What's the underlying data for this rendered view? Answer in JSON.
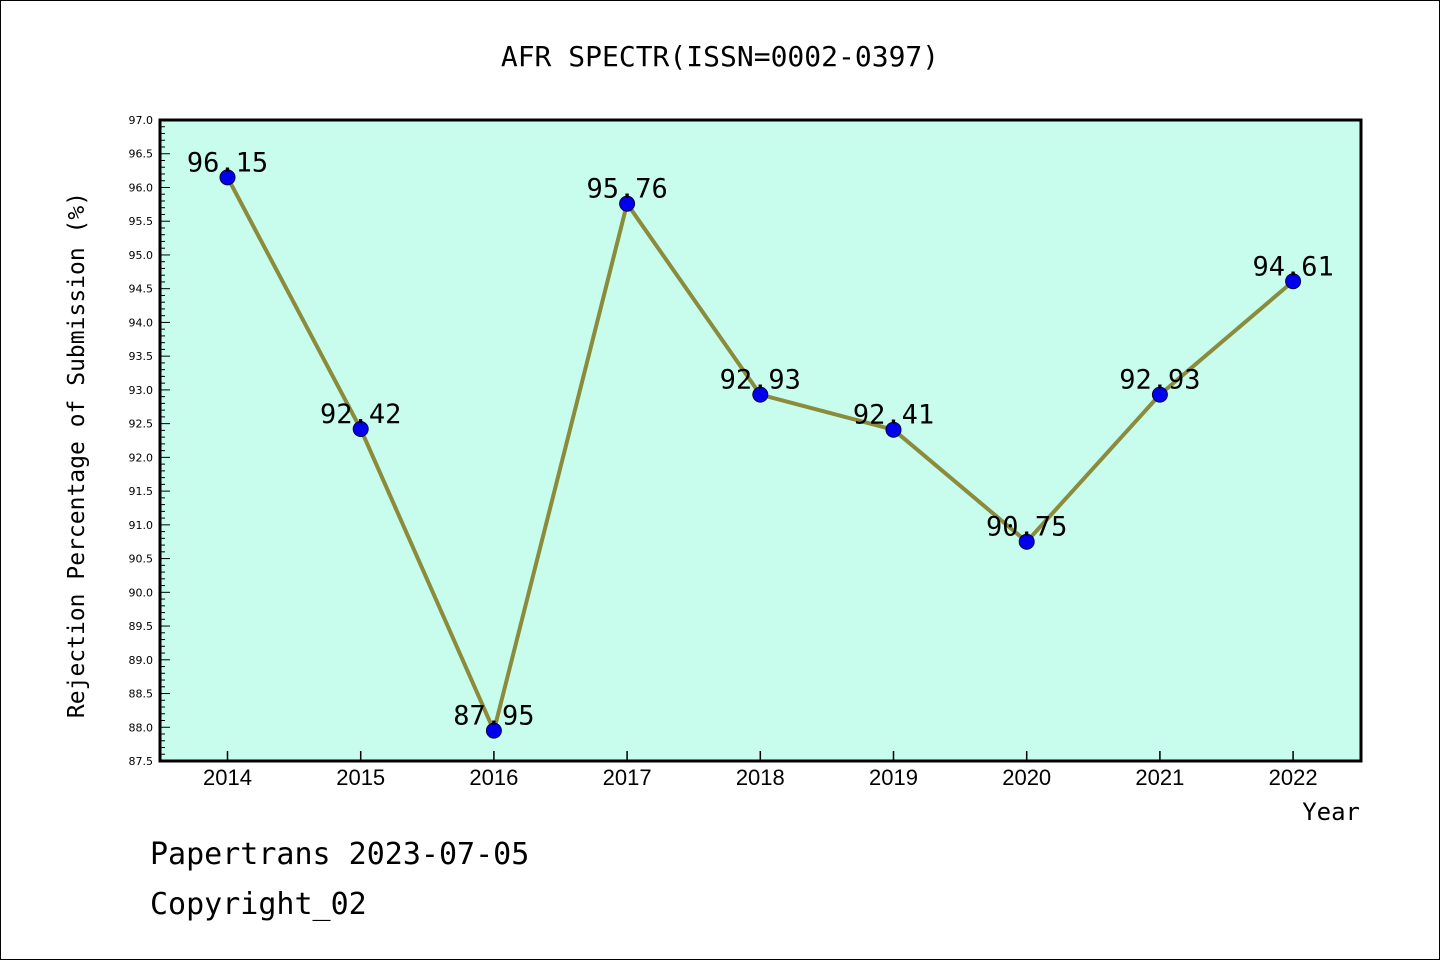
{
  "title": "AFR SPECTR(ISSN=0002-0397)",
  "footer": {
    "line1": "Papertrans 2023-07-05",
    "line2": "Copyright_02"
  },
  "colors": {
    "plot_bg": "#c8fced",
    "line": "#8b8b3c",
    "marker": "#0000ee",
    "frame": "#000000"
  },
  "chart_data": {
    "type": "line",
    "title": "AFR SPECTR(ISSN=0002-0397)",
    "xlabel": "Year",
    "ylabel": "Rejection Percentage of Submission (%)",
    "categories": [
      "2014",
      "2015",
      "2016",
      "2017",
      "2018",
      "2019",
      "2020",
      "2021",
      "2022"
    ],
    "values": [
      96.15,
      92.42,
      87.95,
      95.76,
      92.93,
      92.41,
      90.75,
      92.93,
      94.61
    ],
    "data_labels": [
      "96.15",
      "92.42",
      "87.95",
      "95.76",
      "92.93",
      "92.41",
      "90.75",
      "92.93",
      "94.61"
    ],
    "ylim": [
      87.5,
      97.0
    ],
    "yticks": [
      "87.5",
      "88.0",
      "88.5",
      "89.0",
      "89.5",
      "90.0",
      "90.5",
      "91.0",
      "91.5",
      "92.0",
      "92.5",
      "93.0",
      "93.5",
      "94.0",
      "94.5",
      "95.0",
      "95.5",
      "96.0",
      "96.5",
      "97.0"
    ],
    "grid": false,
    "legend": "none"
  }
}
